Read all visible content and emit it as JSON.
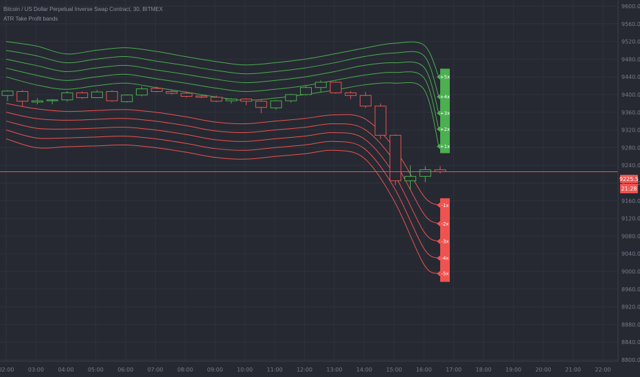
{
  "header": {
    "symbol": "Bitcoin / US Dollar Perpetual Inverse Swap Contract, 30, BITMEX",
    "indicator": "ATR Take Profit bands"
  },
  "colors": {
    "background": "#262932",
    "grid": "#2e323c",
    "up": "#4caf50",
    "down": "#ef5350",
    "price_line": "#ef5350",
    "axis_text": "#787c88"
  },
  "price_axis": {
    "ticks": [
      "9600.0",
      "9560.0",
      "9520.0",
      "9480.0",
      "9440.0",
      "9400.0",
      "9360.0",
      "9320.0",
      "9280.0",
      "9240.0",
      "9200.0",
      "9160.0",
      "9120.0",
      "9080.0",
      "9040.0",
      "9000.0",
      "8960.0",
      "8920.0",
      "8880.0",
      "8840.0",
      "8800.0"
    ],
    "current_price_label": "9225.5",
    "countdown_label": "21:28"
  },
  "time_axis": {
    "ticks": [
      "02:00",
      "03:00",
      "04:00",
      "05:00",
      "06:00",
      "07:00",
      "08:00",
      "09:00",
      "10:00",
      "11:00",
      "12:00",
      "13:00",
      "14:00",
      "15:00",
      "16:00",
      "17:00",
      "18:00",
      "19:00",
      "20:00",
      "21:00",
      "22:00"
    ]
  },
  "band_labels": {
    "upper": [
      "+5x",
      "+4x",
      "+3x",
      "+2x",
      "+1x"
    ],
    "lower": [
      "-1x",
      "-2x",
      "-3x",
      "-4x",
      "-5x"
    ]
  },
  "chart_data": {
    "type": "candlestick",
    "title": "Bitcoin / US Dollar Perpetual Inverse Swap Contract, 30, BITMEX",
    "indicator": "ATR Take Profit bands",
    "x_range": [
      "02:00",
      "22:00"
    ],
    "ylim": [
      8800,
      9600
    ],
    "current_price": 9225.5,
    "countdown": "21:28",
    "candles": [
      {
        "t": "02:00",
        "o": 9398,
        "h": 9410,
        "l": 9385,
        "c": 9408
      },
      {
        "t": "02:30",
        "o": 9407,
        "h": 9410,
        "l": 9373,
        "c": 9385
      },
      {
        "t": "03:00",
        "o": 9383,
        "h": 9392,
        "l": 9378,
        "c": 9386
      },
      {
        "t": "03:30",
        "o": 9386,
        "h": 9390,
        "l": 9378,
        "c": 9388
      },
      {
        "t": "04:00",
        "o": 9388,
        "h": 9408,
        "l": 9384,
        "c": 9404
      },
      {
        "t": "04:30",
        "o": 9404,
        "h": 9407,
        "l": 9390,
        "c": 9393
      },
      {
        "t": "05:00",
        "o": 9393,
        "h": 9410,
        "l": 9392,
        "c": 9406
      },
      {
        "t": "05:30",
        "o": 9407,
        "h": 9410,
        "l": 9384,
        "c": 9386
      },
      {
        "t": "06:00",
        "o": 9384,
        "h": 9400,
        "l": 9382,
        "c": 9399
      },
      {
        "t": "06:30",
        "o": 9399,
        "h": 9418,
        "l": 9396,
        "c": 9413
      },
      {
        "t": "07:00",
        "o": 9414,
        "h": 9418,
        "l": 9405,
        "c": 9407
      },
      {
        "t": "07:30",
        "o": 9407,
        "h": 9410,
        "l": 9400,
        "c": 9403
      },
      {
        "t": "08:00",
        "o": 9403,
        "h": 9407,
        "l": 9393,
        "c": 9396
      },
      {
        "t": "08:30",
        "o": 9397,
        "h": 9399,
        "l": 9392,
        "c": 9394
      },
      {
        "t": "09:00",
        "o": 9394,
        "h": 9398,
        "l": 9383,
        "c": 9385
      },
      {
        "t": "09:30",
        "o": 9386,
        "h": 9392,
        "l": 9380,
        "c": 9390
      },
      {
        "t": "10:00",
        "o": 9390,
        "h": 9392,
        "l": 9376,
        "c": 9385
      },
      {
        "t": "10:30",
        "o": 9385,
        "h": 9388,
        "l": 9358,
        "c": 9371
      },
      {
        "t": "11:00",
        "o": 9370,
        "h": 9388,
        "l": 9366,
        "c": 9386
      },
      {
        "t": "11:30",
        "o": 9386,
        "h": 9402,
        "l": 9382,
        "c": 9400
      },
      {
        "t": "12:00",
        "o": 9400,
        "h": 9420,
        "l": 9398,
        "c": 9416
      },
      {
        "t": "12:30",
        "o": 9416,
        "h": 9432,
        "l": 9406,
        "c": 9428
      },
      {
        "t": "13:00",
        "o": 9428,
        "h": 9430,
        "l": 9402,
        "c": 9404
      },
      {
        "t": "13:30",
        "o": 9404,
        "h": 9408,
        "l": 9390,
        "c": 9398
      },
      {
        "t": "14:00",
        "o": 9398,
        "h": 9406,
        "l": 9370,
        "c": 9374
      },
      {
        "t": "14:30",
        "o": 9374,
        "h": 9380,
        "l": 9300,
        "c": 9308
      },
      {
        "t": "15:00",
        "o": 9308,
        "h": 9310,
        "l": 9195,
        "c": 9205
      },
      {
        "t": "15:30",
        "o": 9205,
        "h": 9240,
        "l": 9185,
        "c": 9215
      },
      {
        "t": "16:00",
        "o": 9215,
        "h": 9238,
        "l": 9202,
        "c": 9230
      },
      {
        "t": "16:30",
        "o": 9230,
        "h": 9238,
        "l": 9222,
        "c": 9225.5
      }
    ],
    "bands": {
      "+5x": [
        9520,
        9510,
        9492,
        9500,
        9506,
        9498,
        9486,
        9475,
        9467,
        9472,
        9480,
        9492,
        9505,
        9516,
        9512,
        9440
      ],
      "+4x": [
        9500,
        9488,
        9472,
        9480,
        9486,
        9476,
        9466,
        9455,
        9447,
        9452,
        9460,
        9472,
        9486,
        9494,
        9488,
        9395
      ],
      "+3x": [
        9480,
        9466,
        9452,
        9460,
        9466,
        9456,
        9446,
        9435,
        9427,
        9432,
        9440,
        9452,
        9466,
        9472,
        9462,
        9358
      ],
      "+2x": [
        9460,
        9444,
        9432,
        9440,
        9446,
        9436,
        9426,
        9415,
        9407,
        9412,
        9420,
        9432,
        9444,
        9450,
        9438,
        9322
      ],
      "+1x": [
        9440,
        9422,
        9412,
        9420,
        9426,
        9416,
        9406,
        9395,
        9387,
        9392,
        9400,
        9410,
        9422,
        9426,
        9412,
        9283
      ],
      "-1x": [
        9380,
        9368,
        9362,
        9364,
        9366,
        9360,
        9350,
        9338,
        9334,
        9340,
        9346,
        9354,
        9346,
        9280,
        9170,
        9150
      ],
      "-2x": [
        9360,
        9346,
        9342,
        9344,
        9346,
        9340,
        9330,
        9318,
        9314,
        9320,
        9326,
        9334,
        9322,
        9250,
        9130,
        9108
      ],
      "-3x": [
        9340,
        9324,
        9322,
        9324,
        9326,
        9320,
        9310,
        9298,
        9294,
        9300,
        9306,
        9314,
        9300,
        9220,
        9090,
        9068
      ],
      "-4x": [
        9320,
        9302,
        9302,
        9304,
        9306,
        9300,
        9290,
        9278,
        9274,
        9280,
        9286,
        9294,
        9278,
        9190,
        9052,
        9030
      ],
      "-5x": [
        9300,
        9280,
        9282,
        9284,
        9286,
        9280,
        9270,
        9258,
        9254,
        9260,
        9266,
        9274,
        9256,
        9160,
        9016,
        8995
      ]
    },
    "band_times": [
      "02:00",
      "03:00",
      "04:00",
      "05:00",
      "06:00",
      "07:00",
      "08:00",
      "09:00",
      "10:00",
      "11:00",
      "12:00",
      "13:00",
      "14:00",
      "15:00",
      "16:00",
      "16:30"
    ],
    "grid": true
  }
}
